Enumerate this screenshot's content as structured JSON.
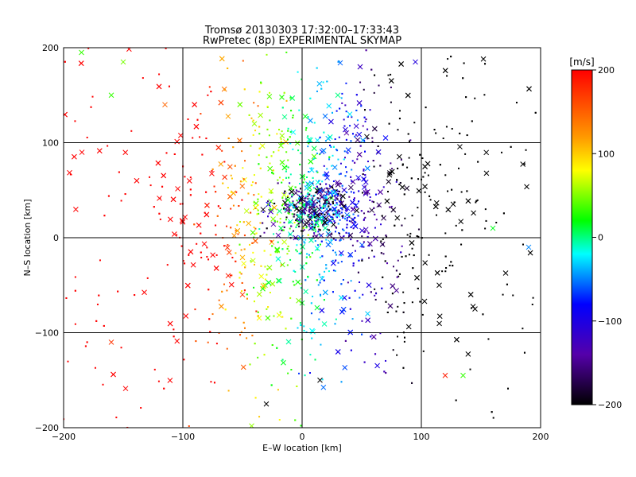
{
  "chart_data": {
    "type": "scatter",
    "title": "Tromsø 20130303 17:32:00–17:33:43",
    "subtitle": "RwPretec (8p) EXPERIMENTAL SKYMAP",
    "xlabel": "E–W location [km]",
    "ylabel": "N–S location [km]",
    "xlim": [
      -200,
      200
    ],
    "ylim": [
      -200,
      200
    ],
    "x_ticks": [
      -200,
      -100,
      0,
      100,
      200
    ],
    "y_ticks": [
      -200,
      -100,
      0,
      100,
      200
    ],
    "x_tick_labels": [
      "−200",
      "−100",
      "0",
      "100",
      "200"
    ],
    "y_tick_labels": [
      "−200",
      "−100",
      "0",
      "100",
      "200"
    ],
    "grid": true,
    "colorbar": {
      "unit": "[m/s]",
      "range": [
        -200,
        200
      ],
      "ticks": [
        200,
        100,
        0,
        -100,
        -200
      ],
      "tick_labels": [
        "200",
        "100",
        "0",
        "−100",
        "−200"
      ],
      "colormap": "black-purple-blue-cyan-green-yellow-red"
    },
    "markers": [
      "dot",
      "cross"
    ],
    "sample_points": [
      {
        "x": -185,
        "y": 195,
        "v": 40,
        "m": "cross"
      },
      {
        "x": -160,
        "y": 150,
        "v": 40,
        "m": "cross"
      },
      {
        "x": -150,
        "y": 185,
        "v": 60,
        "m": "cross"
      },
      {
        "x": -115,
        "y": 140,
        "v": 160,
        "m": "cross"
      },
      {
        "x": -62,
        "y": -40,
        "v": 190,
        "m": "cross"
      },
      {
        "x": -50,
        "y": -60,
        "v": 180,
        "m": "cross"
      },
      {
        "x": -40,
        "y": 120,
        "v": 70,
        "m": "cross"
      },
      {
        "x": -15,
        "y": 45,
        "v": 80,
        "m": "cross"
      },
      {
        "x": 5,
        "y": 35,
        "v": -150,
        "m": "cross"
      },
      {
        "x": 10,
        "y": 28,
        "v": -180,
        "m": "cross"
      },
      {
        "x": 20,
        "y": 20,
        "v": -200,
        "m": "cross"
      },
      {
        "x": 30,
        "y": 150,
        "v": 0,
        "m": "cross"
      },
      {
        "x": 40,
        "y": 130,
        "v": -30,
        "m": "cross"
      },
      {
        "x": 55,
        "y": -80,
        "v": -40,
        "m": "cross"
      },
      {
        "x": 70,
        "y": 105,
        "v": -100,
        "m": "cross"
      },
      {
        "x": 95,
        "y": 185,
        "v": -120,
        "m": "cross"
      },
      {
        "x": 115,
        "y": -50,
        "v": -200,
        "m": "cross"
      },
      {
        "x": 145,
        "y": -75,
        "v": -200,
        "m": "cross"
      },
      {
        "x": 160,
        "y": 10,
        "v": 20,
        "m": "cross"
      },
      {
        "x": 190,
        "y": -10,
        "v": -60,
        "m": "cross"
      },
      {
        "x": 120,
        "y": -145,
        "v": 190,
        "m": "cross"
      },
      {
        "x": 135,
        "y": -145,
        "v": 40,
        "m": "cross"
      },
      {
        "x": -160,
        "y": -110,
        "v": 180,
        "m": "cross"
      },
      {
        "x": 15,
        "y": -150,
        "v": -200,
        "m": "cross"
      },
      {
        "x": -30,
        "y": -175,
        "v": -200,
        "m": "cross"
      }
    ]
  }
}
